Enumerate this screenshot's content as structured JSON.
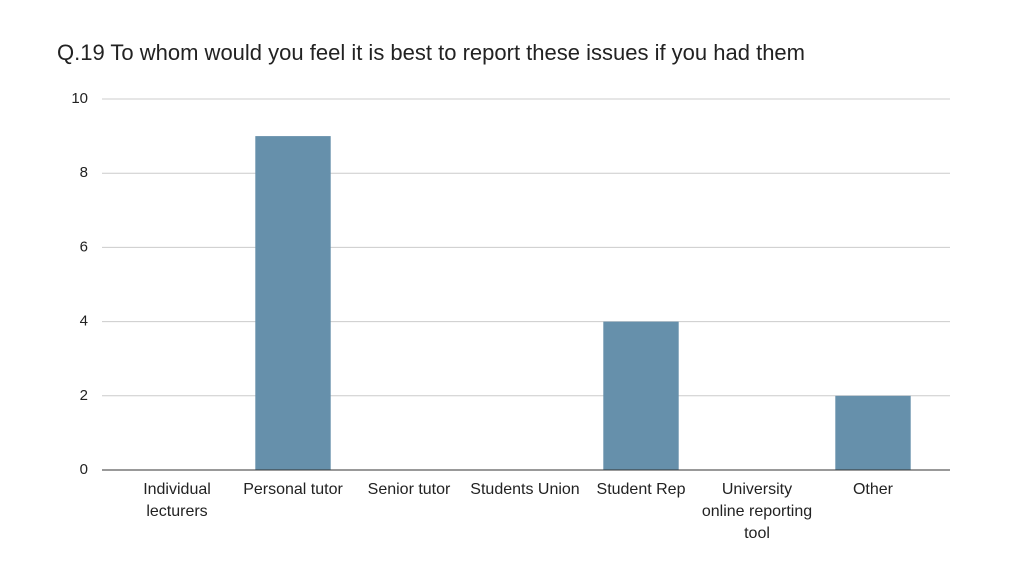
{
  "chart_data": {
    "type": "bar",
    "title": "Q.19 To whom would you feel it is best to report these issues if you had them",
    "categories": [
      "Individual lecturers",
      "Personal tutor",
      "Senior tutor",
      "Students Union",
      "Student Rep",
      "University online reporting tool",
      "Other"
    ],
    "values": [
      0,
      9,
      0,
      0,
      4,
      0,
      2
    ],
    "color": "#6690ab",
    "ylim": [
      0,
      10
    ],
    "yticks": [
      0,
      2,
      4,
      6,
      8,
      10
    ],
    "grid": true
  }
}
